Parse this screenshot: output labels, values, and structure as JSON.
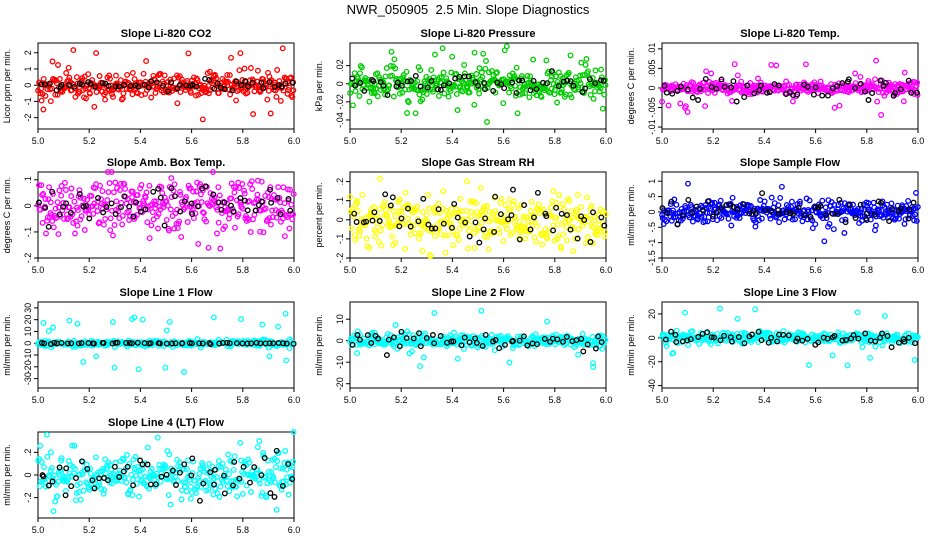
{
  "title": "NWR_050905  2.5 Min. Slope Diagnostics",
  "chart_data": [
    {
      "type": "scatter",
      "title": "Slope Li-820 CO2",
      "ylabel": "Licor ppm per min.",
      "color": "#ff0000",
      "xlim": [
        5.0,
        6.0
      ],
      "ylim": [
        -2.7,
        2.6
      ],
      "xticks": [
        5.0,
        5.2,
        5.4,
        5.6,
        5.8,
        6.0
      ],
      "yticks": [
        -2,
        -1,
        0,
        1,
        2
      ],
      "spread": 0.35,
      "outlier": 1.2,
      "black_spread": 0.15,
      "seed": 11
    },
    {
      "type": "scatter",
      "title": "Slope Li-820 Pressure",
      "ylabel": "kPa per min.",
      "color": "#00cc00",
      "xlim": [
        5.0,
        6.0
      ],
      "ylim": [
        -0.05,
        0.045
      ],
      "xticks": [
        5.0,
        5.2,
        5.4,
        5.6,
        5.8,
        6.0
      ],
      "yticks": [
        -0.04,
        -0.02,
        0.0,
        0.02
      ],
      "spread": 0.008,
      "outlier": 0.02,
      "black_spread": 0.006,
      "seed": 23
    },
    {
      "type": "scatter",
      "title": "Slope Li-820 Temp.",
      "ylabel": "degrees C per min.",
      "color": "#ff00ff",
      "xlim": [
        5.0,
        6.0
      ],
      "ylim": [
        -0.0105,
        0.0115
      ],
      "xticks": [
        5.0,
        5.2,
        5.4,
        5.6,
        5.8,
        6.0
      ],
      "yticks": [
        -0.01,
        -0.005,
        0.0,
        0.005,
        0.01
      ],
      "spread": 0.0008,
      "outlier": 0.004,
      "black_spread": 0.0015,
      "seed": 37
    },
    {
      "type": "scatter",
      "title": "Slope Amb. Box Temp.",
      "ylabel": "degrees C per min.",
      "color": "#ff00ff",
      "xlim": [
        5.0,
        6.0
      ],
      "ylim": [
        -0.2,
        0.13
      ],
      "xticks": [
        5.0,
        5.2,
        5.4,
        5.6,
        5.8,
        6.0
      ],
      "yticks": [
        -0.2,
        -0.1,
        0.0,
        0.1
      ],
      "spread": 0.05,
      "outlier": 0.07,
      "black_spread": 0.035,
      "seed": 41
    },
    {
      "type": "scatter",
      "title": "Slope Gas Stream RH",
      "ylabel": "percent per min.",
      "color": "#ffff00",
      "xlim": [
        5.0,
        6.0
      ],
      "ylim": [
        -0.2,
        0.25
      ],
      "xticks": [
        5.0,
        5.2,
        5.4,
        5.6,
        5.8,
        6.0
      ],
      "yticks": [
        -0.2,
        -0.1,
        0.0,
        0.1,
        0.2
      ],
      "spread": 0.07,
      "outlier": 0.08,
      "black_spread": 0.06,
      "seed": 53
    },
    {
      "type": "scatter",
      "title": "Slope Sample Flow",
      "ylabel": "ml/min per min.",
      "color": "#0000ff",
      "xlim": [
        5.0,
        6.0
      ],
      "ylim": [
        -1.5,
        1.3
      ],
      "xticks": [
        5.0,
        5.2,
        5.4,
        5.6,
        5.8,
        6.0
      ],
      "yticks": [
        -1.5,
        -1.0,
        -0.5,
        0.0,
        0.5,
        1.0
      ],
      "spread": 0.18,
      "outlier": 0.5,
      "black_spread": 0.25,
      "seed": 61
    },
    {
      "type": "scatter",
      "title": "Slope Line 1 Flow",
      "ylabel": "ml/min per min.",
      "color": "#00ffff",
      "xlim": [
        5.0,
        6.0
      ],
      "ylim": [
        -38,
        35
      ],
      "xticks": [
        5.0,
        5.2,
        5.4,
        5.6,
        5.8,
        6.0
      ],
      "yticks": [
        -30,
        -20,
        -10,
        0,
        10,
        20,
        30
      ],
      "spread": 1.2,
      "outlier": 15,
      "black_spread": 0.3,
      "seed": 71
    },
    {
      "type": "scatter",
      "title": "Slope Line 2 Flow",
      "ylabel": "ml/min per min.",
      "color": "#00ffff",
      "xlim": [
        5.0,
        6.0
      ],
      "ylim": [
        -22,
        18
      ],
      "xticks": [
        5.0,
        5.2,
        5.4,
        5.6,
        5.8,
        6.0
      ],
      "yticks": [
        -20,
        -10,
        0,
        10
      ],
      "spread": 1.5,
      "outlier": 8,
      "black_spread": 2.0,
      "seed": 83
    },
    {
      "type": "scatter",
      "title": "Slope Line 3 Flow",
      "ylabel": "ml/min per min.",
      "color": "#00ffff",
      "xlim": [
        5.0,
        6.0
      ],
      "ylim": [
        -42,
        30
      ],
      "xticks": [
        5.0,
        5.2,
        5.4,
        5.6,
        5.8,
        6.0
      ],
      "yticks": [
        -40,
        -20,
        0,
        20
      ],
      "spread": 2.5,
      "outlier": 15,
      "black_spread": 3.0,
      "seed": 97
    },
    {
      "type": "scatter",
      "title": "Slope Line 4 (LT) Flow",
      "ylabel": "ml/min per min.",
      "color": "#00ffff",
      "xlim": [
        5.0,
        6.0
      ],
      "ylim": [
        -0.38,
        0.38
      ],
      "xticks": [
        5.0,
        5.2,
        5.4,
        5.6,
        5.8,
        6.0
      ],
      "yticks": [
        -0.2,
        0.0,
        0.2
      ],
      "spread": 0.1,
      "outlier": 0.12,
      "black_spread": 0.09,
      "seed": 101
    }
  ]
}
